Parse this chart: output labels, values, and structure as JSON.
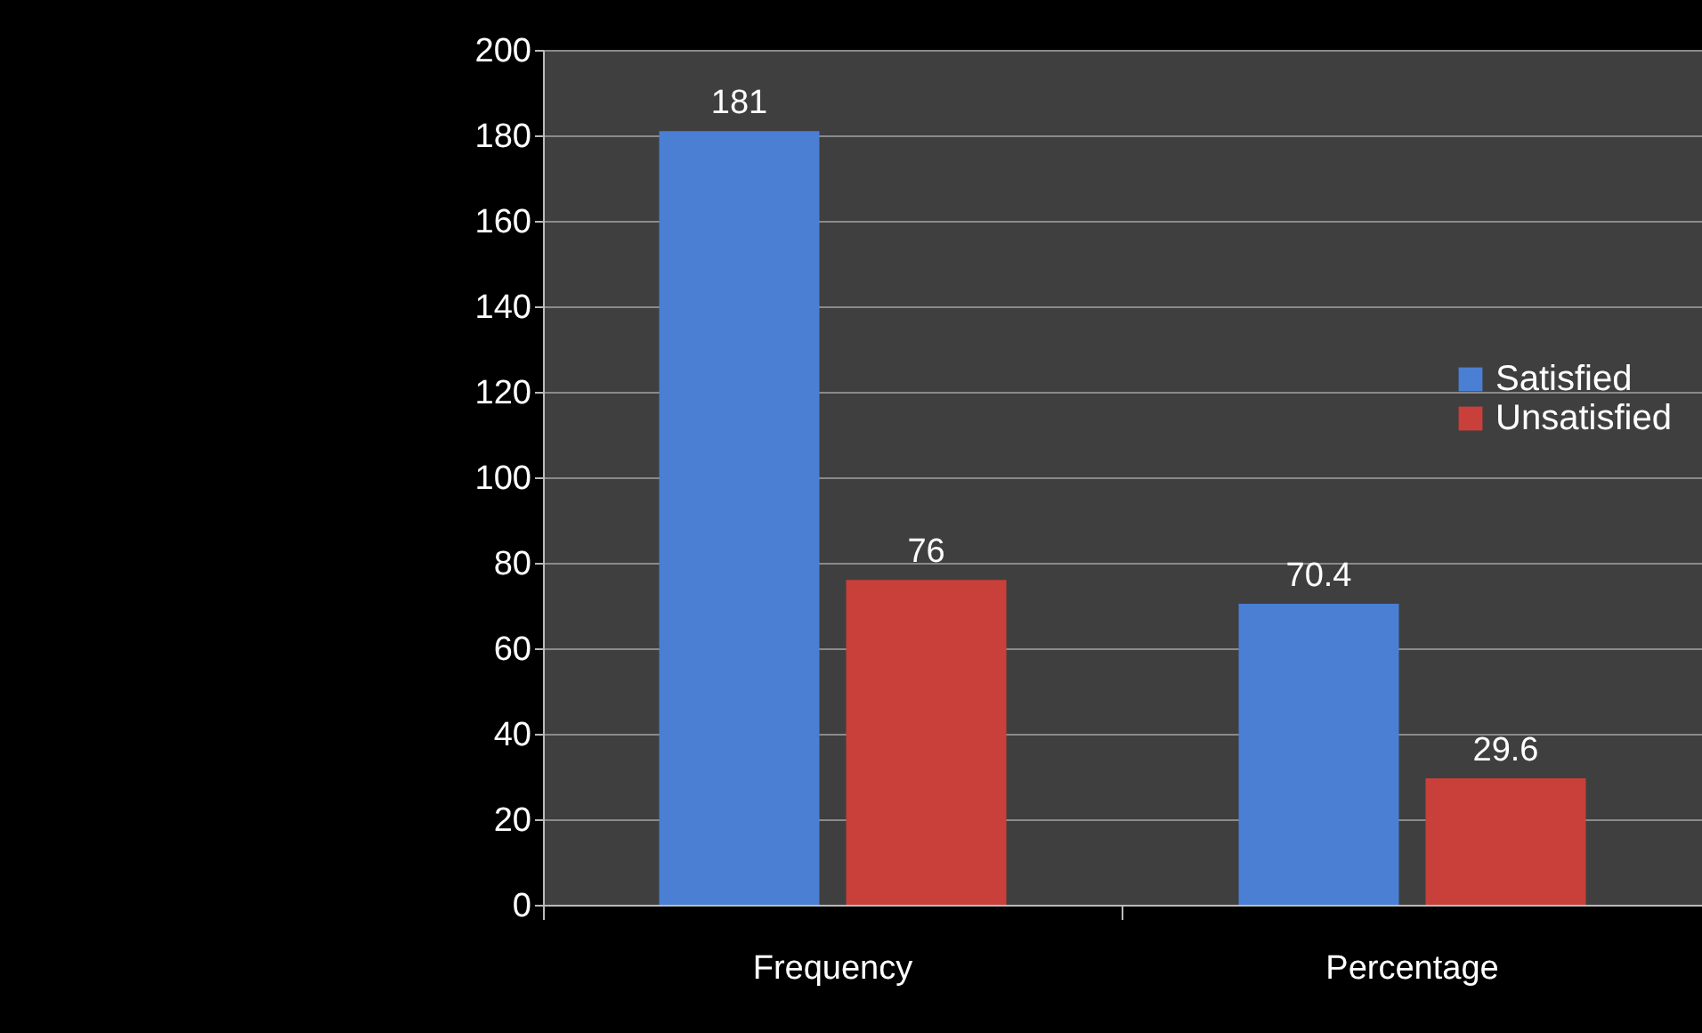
{
  "chart_data": {
    "type": "bar",
    "categories": [
      "Frequency",
      "Percentage"
    ],
    "series": [
      {
        "name": "Satisfied",
        "color": "#4a7fd4",
        "values": [
          181,
          70.4
        ]
      },
      {
        "name": "Unsatisfied",
        "color": "#c9403a",
        "values": [
          76,
          29.6
        ]
      }
    ],
    "ylim": [
      0,
      200
    ],
    "yticks": [
      0,
      20,
      40,
      60,
      80,
      100,
      120,
      140,
      160,
      180,
      200
    ],
    "grid": "y",
    "legend": "right",
    "data_labels": true
  }
}
